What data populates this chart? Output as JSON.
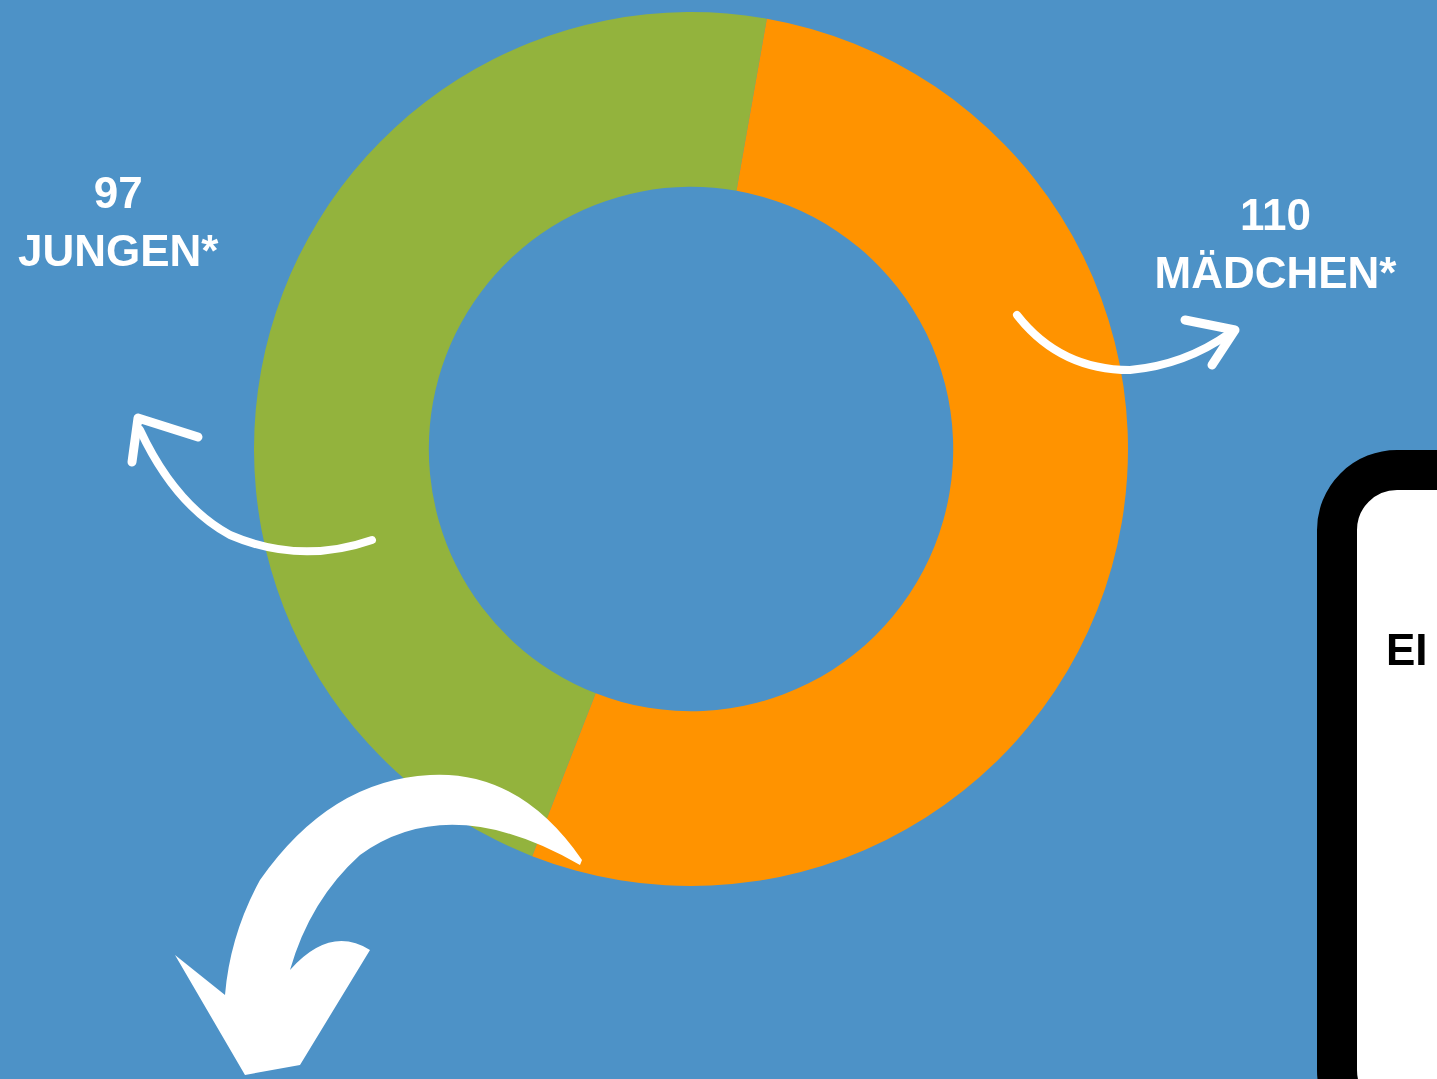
{
  "chart_data": {
    "type": "donut",
    "categories": [
      "JUNGEN*",
      "MÄDCHEN*"
    ],
    "values": [
      97,
      110
    ],
    "colors": [
      "#93b33d",
      "#ff9300"
    ],
    "data_labels": true,
    "legend": false,
    "annotations": [
      "EI"
    ]
  }
}
